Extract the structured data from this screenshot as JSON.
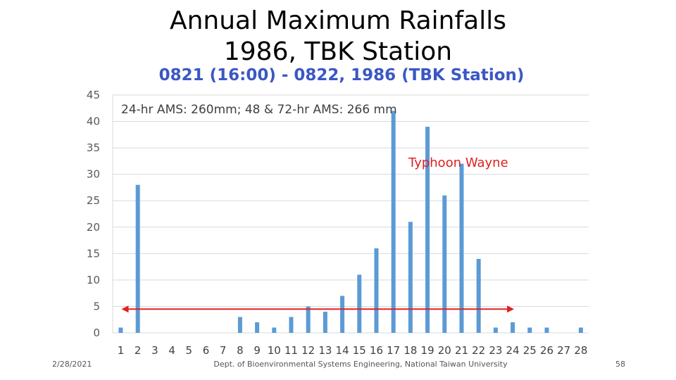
{
  "slide": {
    "title_line1": "Annual Maximum Rainfalls",
    "title_line2": "1986, TBK Station"
  },
  "footer": {
    "date": "2/28/2021",
    "department": "Dept. of Bioenvironmental Systems Engineering, National Taiwan University",
    "page": "58"
  },
  "chart_data": {
    "type": "bar",
    "title": "0821 (16:00) - 0822, 1986 (TBK Station)",
    "categories": [
      "1",
      "2",
      "3",
      "4",
      "5",
      "6",
      "7",
      "8",
      "9",
      "10",
      "11",
      "12",
      "13",
      "14",
      "15",
      "16",
      "17",
      "18",
      "19",
      "20",
      "21",
      "22",
      "23",
      "24",
      "25",
      "26",
      "27",
      "28"
    ],
    "values": [
      1,
      28,
      0,
      0,
      0,
      0,
      0,
      3,
      2,
      1,
      3,
      5,
      4,
      7,
      11,
      16,
      42,
      21,
      39,
      26,
      32,
      14,
      1,
      2,
      1,
      1,
      0,
      1
    ],
    "ylim": [
      0,
      45
    ],
    "yticks": [
      0,
      5,
      10,
      15,
      20,
      25,
      30,
      35,
      40,
      45
    ],
    "grid": true,
    "bar_color": "#5b9bd5",
    "annotations": {
      "ams_text": "24-hr AMS: 260mm; 48 & 72-hr AMS: 266 mm",
      "typhoon_label": "Typhoon Wayne",
      "typhoon_color": "#e02020",
      "arrow_span": [
        "1",
        "24"
      ],
      "arrow_value": 4.5
    }
  }
}
